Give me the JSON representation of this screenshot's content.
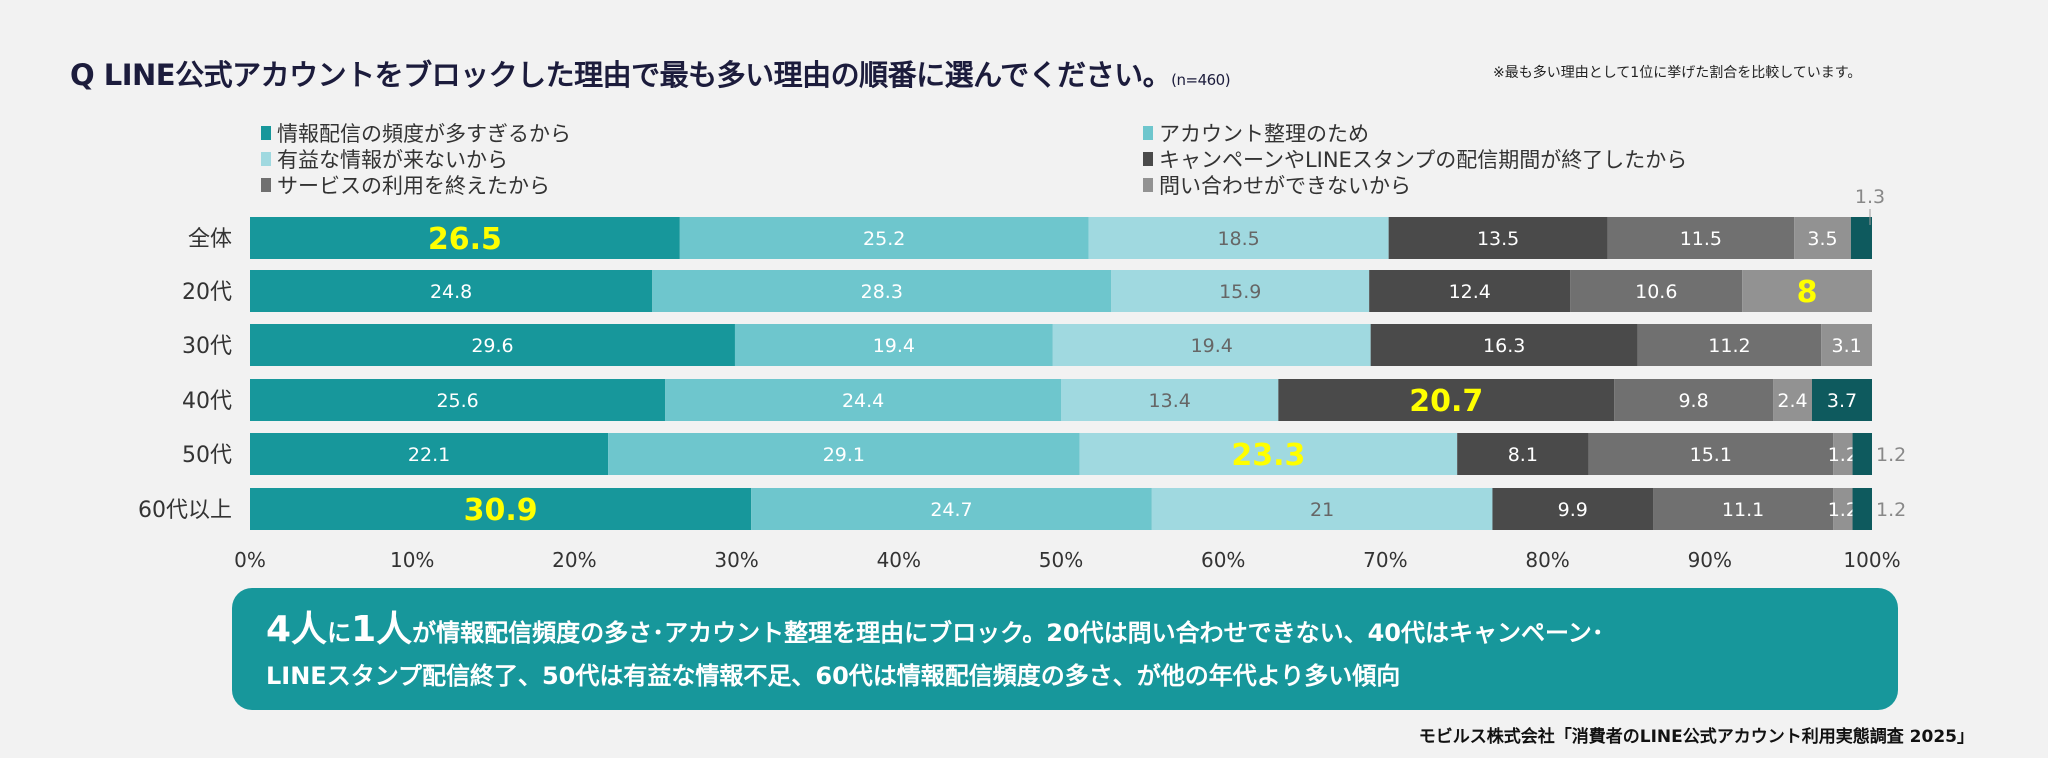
{
  "title": "Q LINE公式アカウントをブロックした理由で最も多い理由の順番に選んでください。",
  "sample": "(n=460)",
  "note": "※最も多い理由として1位に挙げた割合を比較しています。",
  "chart_data": {
    "type": "bar",
    "orientation": "horizontal-stacked-100",
    "categories": [
      "全体",
      "20代",
      "30代",
      "40代",
      "50代",
      "60代以上"
    ],
    "series": [
      {
        "name": "情報配信の頻度が多すぎるから",
        "color": "#17979b",
        "values": [
          26.5,
          24.8,
          29.6,
          25.6,
          22.1,
          30.9
        ]
      },
      {
        "name": "アカウント整理のため",
        "color": "#6ec6cd",
        "values": [
          25.2,
          28.3,
          19.4,
          24.4,
          29.1,
          24.7
        ]
      },
      {
        "name": "有益な情報が来ないから",
        "color": "#a0d9e0",
        "values": [
          18.5,
          15.9,
          19.4,
          13.4,
          23.3,
          21.0
        ]
      },
      {
        "name": "キャンペーンやLINEスタンプの配信期間が終了したから",
        "color": "#4a4a4a",
        "values": [
          13.5,
          12.4,
          16.3,
          20.7,
          8.1,
          9.9
        ]
      },
      {
        "name": "サービスの利用を終えたから",
        "color": "#707070",
        "values": [
          11.5,
          10.6,
          11.2,
          9.8,
          15.1,
          11.1
        ]
      },
      {
        "name": "問い合わせができないから",
        "color": "#929292",
        "values": [
          3.5,
          8,
          3.1,
          2.4,
          1.2,
          1.2
        ]
      },
      {
        "name": "",
        "color": "#0e5a5e",
        "values": [
          1.3,
          0,
          0,
          3.7,
          1.2,
          1.2
        ]
      }
    ],
    "highlights": [
      [
        0,
        0
      ],
      [
        1,
        5
      ],
      [
        3,
        3
      ],
      [
        4,
        2
      ],
      [
        5,
        0
      ]
    ],
    "highlight_color": "#ffff00",
    "outside_labels": [
      {
        "row": 0,
        "series": 6,
        "text": "1.3",
        "position": "above"
      },
      {
        "row": 4,
        "series": 6,
        "text": "1.2",
        "position": "right"
      },
      {
        "row": 5,
        "series": 6,
        "text": "1.2",
        "position": "right"
      }
    ],
    "xticks": [
      "0%",
      "10%",
      "20%",
      "30%",
      "40%",
      "50%",
      "60%",
      "70%",
      "80%",
      "90%",
      "100%"
    ],
    "xlim": [
      0,
      100
    ],
    "grid": false,
    "legend_position": "top"
  },
  "summary": {
    "big1": "4人",
    "t1": "に",
    "big2": "1人",
    "t2": "が情報配信頻度の多さ･アカウント整理を理由にブロック。20代は問い合わせできない、40代はキャンペーン･",
    "line2": "LINEスタンプ配信終了、50代は有益な情報不足、60代は情報配信頻度の多さ、が他の年代より多い傾向"
  },
  "source": "モビルス株式会社「消費者のLINE公式アカウント利用実態調査 2025」"
}
